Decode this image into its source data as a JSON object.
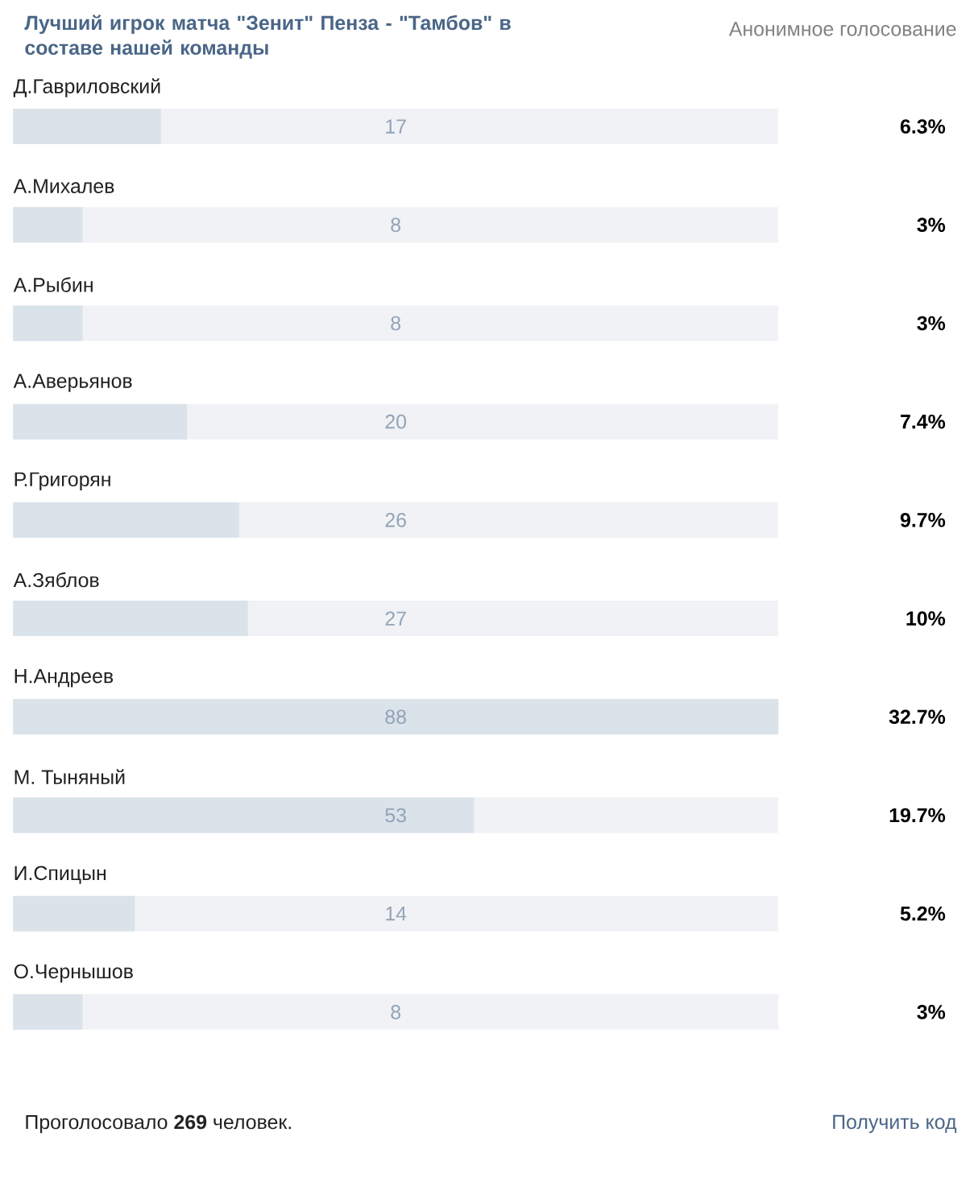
{
  "chart_data": {
    "type": "bar",
    "orientation": "horizontal",
    "title": "Лучший игрок матча \"Зенит\" Пенза - \"Тамбов\" в составе нашей команды",
    "subtitle": "Анонимное голосование",
    "categories": [
      "Д.Гавриловский",
      "А.Михалев",
      "А.Рыбин",
      "А.Аверьянов",
      "Р.Григорян",
      "А.Зяблов",
      "Н.Андреев",
      "М. Тыняный",
      "И.Спицын",
      "О.Чернышов"
    ],
    "values": [
      17,
      8,
      8,
      20,
      26,
      27,
      88,
      53,
      14,
      8
    ],
    "color": "#dae2ea",
    "xlim": [
      0,
      88
    ],
    "data_labels": true,
    "annotations": [
      "6.3%",
      "3%",
      "3%",
      "7.4%",
      "9.7%",
      "10%",
      "32.7%",
      "19.7%",
      "5.2%",
      "3%",
      "Проголосовало **269** человек.",
      "Получить код"
    ]
  }
}
